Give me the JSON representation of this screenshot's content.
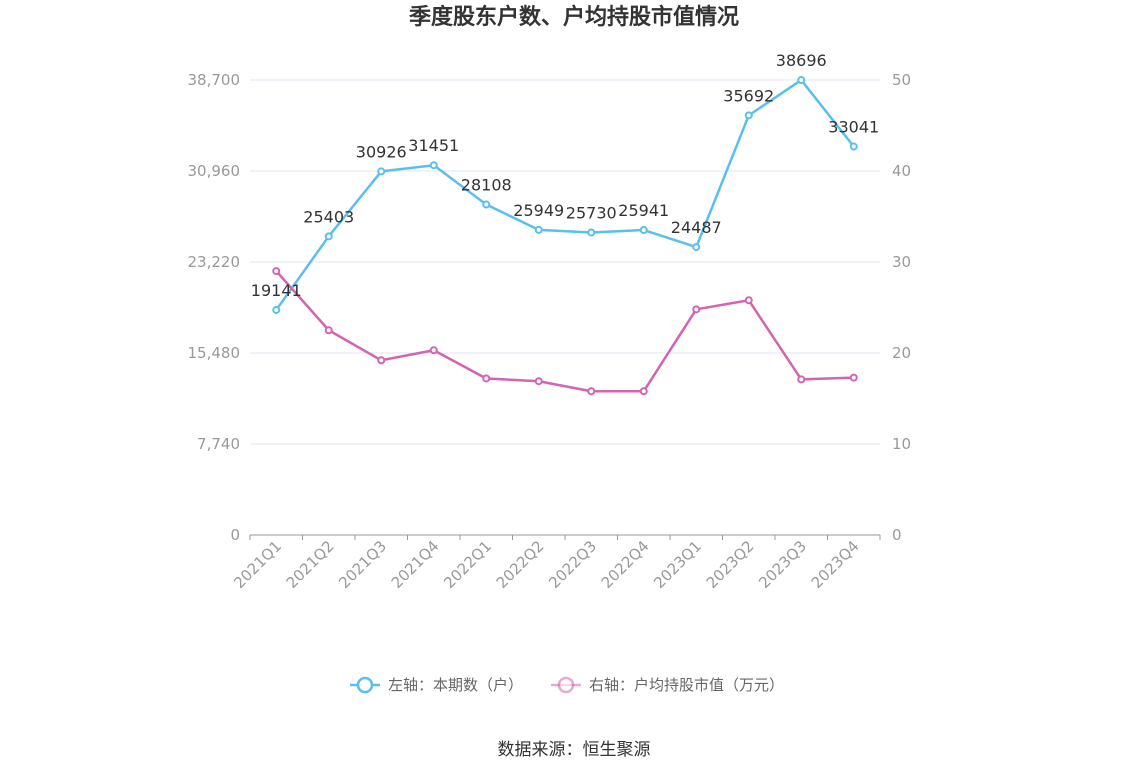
{
  "title": "季度股东户数、户均持股市值情况",
  "source": "数据来源：恒生聚源",
  "colors": {
    "left_series": "#5bbfee",
    "right_series": "#d264b0",
    "grid": "#dfe6ee",
    "axis": "#999999"
  },
  "legend": [
    {
      "label": "左轴：本期数（户）",
      "color": "#5bbfee"
    },
    {
      "label": "右轴：户均持股市值（万元）",
      "color": "#d264b0"
    }
  ],
  "chart_data": {
    "type": "line",
    "title": "季度股东户数、户均持股市值情况",
    "categories": [
      "2021Q1",
      "2021Q2",
      "2021Q3",
      "2021Q4",
      "2022Q1",
      "2022Q2",
      "2022Q3",
      "2022Q4",
      "2023Q1",
      "2023Q2",
      "2023Q3",
      "2023Q4"
    ],
    "left_axis": {
      "ticks": [
        "0",
        "7,740",
        "15,480",
        "23,220",
        "30,960",
        "38,700"
      ],
      "ylim": [
        0,
        38700
      ]
    },
    "right_axis": {
      "ticks": [
        "0",
        "10",
        "20",
        "30",
        "40",
        "50"
      ],
      "ylim": [
        0,
        50
      ]
    },
    "series": [
      {
        "name": "左轴：本期数（户）",
        "axis": "left",
        "values": [
          19141,
          25403,
          30926,
          31451,
          28108,
          25949,
          25730,
          25941,
          24487,
          35692,
          38696,
          33041
        ],
        "labels": [
          "19141",
          "25403",
          "30926",
          "31451",
          "28108",
          "25949",
          "25730",
          "25941",
          "24487",
          "35692",
          "38696",
          "33041"
        ]
      },
      {
        "name": "右轴：户均持股市值（万元）",
        "axis": "right",
        "values": [
          29.0,
          22.5,
          19.2,
          20.3,
          17.2,
          16.9,
          15.8,
          15.8,
          24.8,
          25.8,
          17.1,
          17.3
        ]
      }
    ],
    "grid": true,
    "legend_position": "bottom"
  }
}
